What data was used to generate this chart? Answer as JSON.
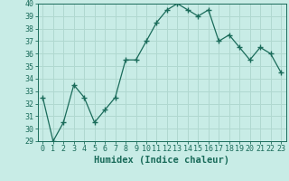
{
  "x": [
    0,
    1,
    2,
    3,
    4,
    5,
    6,
    7,
    8,
    9,
    10,
    11,
    12,
    13,
    14,
    15,
    16,
    17,
    18,
    19,
    20,
    21,
    22,
    23
  ],
  "y": [
    32.5,
    29.0,
    30.5,
    33.5,
    32.5,
    30.5,
    31.5,
    32.5,
    35.5,
    35.5,
    37.0,
    38.5,
    39.5,
    40.0,
    39.5,
    39.0,
    39.5,
    37.0,
    37.5,
    36.5,
    35.5,
    36.5,
    36.0,
    34.5
  ],
  "line_color": "#1a6b5a",
  "marker": "+",
  "marker_size": 4,
  "bg_color": "#c8ece6",
  "grid_color": "#b0d8d0",
  "xlabel": "Humidex (Indice chaleur)",
  "xlim": [
    -0.5,
    23.5
  ],
  "ylim": [
    29,
    40
  ],
  "yticks": [
    29,
    30,
    31,
    32,
    33,
    34,
    35,
    36,
    37,
    38,
    39,
    40
  ],
  "xticks": [
    0,
    1,
    2,
    3,
    4,
    5,
    6,
    7,
    8,
    9,
    10,
    11,
    12,
    13,
    14,
    15,
    16,
    17,
    18,
    19,
    20,
    21,
    22,
    23
  ],
  "tick_fontsize": 6,
  "xlabel_fontsize": 7.5
}
